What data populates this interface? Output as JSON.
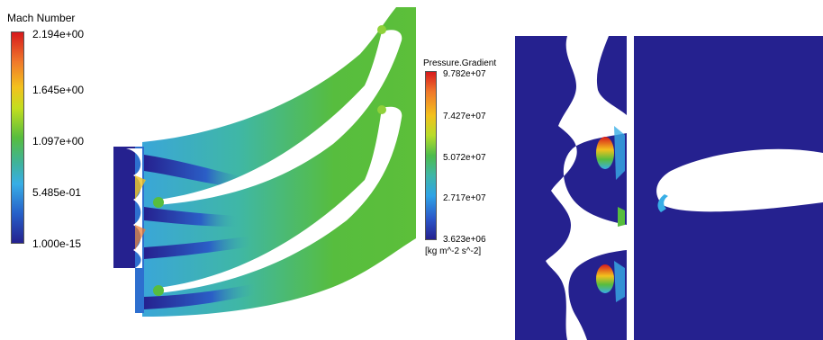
{
  "mach_legend": {
    "title": "Mach Number",
    "ticks": [
      "2.194e+00",
      "1.645e+00",
      "1.097e+00",
      "5.485e-01",
      "1.000e-15"
    ]
  },
  "pressure_legend": {
    "title": "Pressure.Gradient",
    "ticks": [
      "9.782e+07",
      "7.427e+07",
      "5.072e+07",
      "2.717e+07",
      "3.623e+06"
    ],
    "unit": "[kg m^-2 s^-2]"
  },
  "colors": {
    "low": "#25218f",
    "mid": "#57bd3e",
    "high": "#d7191c",
    "background": "#ffffff"
  }
}
